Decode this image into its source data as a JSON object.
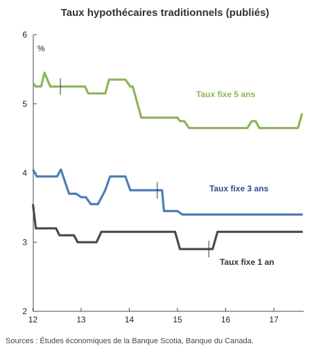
{
  "chart_data": {
    "type": "line",
    "title": "Taux hypothécaires traditionnels (publiés)",
    "ylabel": "%",
    "ylim": [
      2,
      6
    ],
    "xlim": [
      12,
      17.6
    ],
    "yticks": [
      "2",
      "3",
      "4",
      "5",
      "6"
    ],
    "xticks": [
      "12",
      "13",
      "14",
      "15",
      "16",
      "17"
    ],
    "source": "Sources : Études économiques de la Banque Scotia, Banque du Canada.",
    "series": [
      {
        "name": "Taux fixe 5 ans",
        "color": "#8db458",
        "x": [
          12,
          12.06,
          12.17,
          12.24,
          12.36,
          12.6,
          13.08,
          13.15,
          13.5,
          13.58,
          13.92,
          14.02,
          14.07,
          14.25,
          15.0,
          15.05,
          15.14,
          15.24,
          16.45,
          16.54,
          16.62,
          16.7,
          17.5,
          17.58,
          17.6
        ],
        "y": [
          5.3,
          5.25,
          5.25,
          5.45,
          5.25,
          5.25,
          5.25,
          5.15,
          5.15,
          5.35,
          5.35,
          5.25,
          5.25,
          4.8,
          4.8,
          4.75,
          4.75,
          4.65,
          4.65,
          4.75,
          4.75,
          4.65,
          4.65,
          4.85,
          4.85
        ]
      },
      {
        "name": "Taux fixe 3 ans",
        "color": "#4f7db8",
        "x": [
          12,
          12.08,
          12.5,
          12.58,
          12.75,
          12.9,
          13.0,
          13.1,
          13.2,
          13.35,
          13.5,
          13.6,
          13.92,
          14.02,
          14.2,
          14.68,
          14.72,
          15.0,
          15.1,
          17.6
        ],
        "y": [
          4.05,
          3.95,
          3.95,
          4.05,
          3.7,
          3.7,
          3.65,
          3.65,
          3.55,
          3.55,
          3.75,
          3.95,
          3.95,
          3.75,
          3.75,
          3.75,
          3.45,
          3.45,
          3.4,
          3.4
        ]
      },
      {
        "name": "Taux fixe 1 an",
        "color": "#4a4a4a",
        "x": [
          12,
          12.06,
          12.48,
          12.55,
          12.85,
          12.93,
          13.32,
          13.42,
          14.95,
          15.05,
          15.73,
          15.83,
          17.6
        ],
        "y": [
          3.55,
          3.2,
          3.2,
          3.1,
          3.1,
          3.0,
          3.0,
          3.15,
          3.15,
          2.9,
          2.9,
          3.15,
          3.15
        ]
      }
    ],
    "annotations": [
      {
        "x": 12.57,
        "y": 5.25,
        "half_span": 0.12
      },
      {
        "x": 14.58,
        "y": 3.75,
        "half_span": 0.12
      },
      {
        "x": 15.65,
        "y": 2.9,
        "half_span": 0.12
      }
    ]
  }
}
